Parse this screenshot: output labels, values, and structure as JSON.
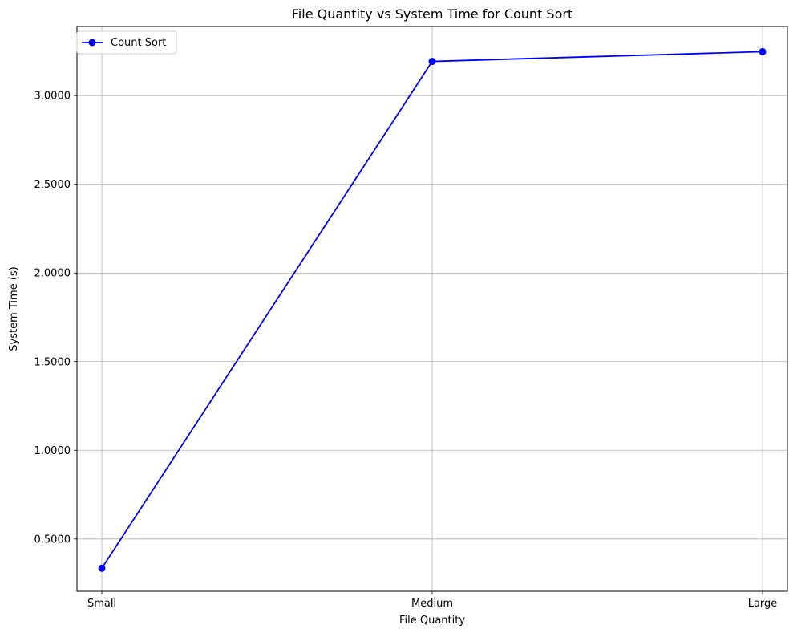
{
  "chart_data": {
    "type": "line",
    "title": "File Quantity vs System Time for Count Sort",
    "xlabel": "File Quantity",
    "ylabel": "System Time (s)",
    "categories": [
      "Small",
      "Medium",
      "Large"
    ],
    "series": [
      {
        "name": "Count Sort",
        "values": [
          0.335,
          3.193,
          3.248
        ],
        "color": "#0000ff",
        "marker": "circle"
      }
    ],
    "ylim": [
      0.205,
      3.39
    ],
    "yticks": [
      0.5,
      1.0,
      1.5,
      2.0,
      2.5,
      3.0
    ],
    "ytick_labels": [
      "0.5000",
      "1.0000",
      "1.5000",
      "2.0000",
      "2.5000",
      "3.0000"
    ],
    "grid": true,
    "legend_position": "upper-left"
  }
}
